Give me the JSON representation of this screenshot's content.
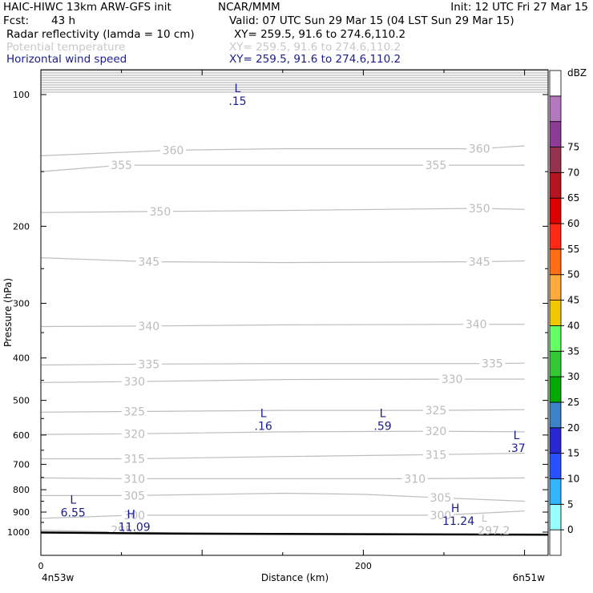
{
  "header": {
    "model_title": "HAIC-HIWC 13km ARW-GFS init",
    "org": "NCAR/MMM",
    "init": "Init: 12 UTC Fri 27 Mar 15",
    "fcst_label": "Fcst:",
    "fcst_value": "43 h",
    "valid": "Valid: 07 UTC Sun 29 Mar 15 (04 LST Sun 29 Mar 15)",
    "fields": [
      {
        "name": "Radar reflectivity (lamda = 10 cm)",
        "xy": "XY= 259.5, 91.6 to 274.6,110.2",
        "color": "#000000"
      },
      {
        "name": "Potential temperature",
        "xy": "XY= 259.5, 91.6 to 274.6,110.2",
        "color": "#c8c8c8"
      },
      {
        "name": "Horizontal wind speed",
        "xy": "XY= 259.5, 91.6 to 274.6,110.2",
        "color": "#1c1c8c"
      }
    ]
  },
  "chart_data": {
    "type": "cross-section",
    "xlabel": "Distance (km)",
    "ylabel": "Pressure (hPa)",
    "x_ticks": [
      "0",
      "200"
    ],
    "x_end_labels": {
      "left": "4n53w",
      "right": "6n51w"
    },
    "xlim": [
      0,
      300
    ],
    "y_ticks": [
      100,
      200,
      300,
      400,
      500,
      600,
      700,
      800,
      900,
      1000
    ],
    "ylim_hpa": [
      1050,
      50
    ],
    "y_scale": "log",
    "theta_contours": [
      {
        "value": 295,
        "labels": [
          {
            "x": 50,
            "p": 990
          }
        ]
      },
      {
        "value": 300,
        "labels": [
          {
            "x": 58,
            "p": 915
          },
          {
            "x": 248,
            "p": 915
          }
        ]
      },
      {
        "value": 305,
        "labels": [
          {
            "x": 58,
            "p": 825
          },
          {
            "x": 248,
            "p": 835
          }
        ]
      },
      {
        "value": 310,
        "labels": [
          {
            "x": 58,
            "p": 755
          },
          {
            "x": 232,
            "p": 755
          }
        ]
      },
      {
        "value": 315,
        "labels": [
          {
            "x": 58,
            "p": 680
          },
          {
            "x": 245,
            "p": 665
          }
        ]
      },
      {
        "value": 320,
        "labels": [
          {
            "x": 58,
            "p": 596
          },
          {
            "x": 245,
            "p": 588
          }
        ]
      },
      {
        "value": 325,
        "labels": [
          {
            "x": 58,
            "p": 530
          },
          {
            "x": 245,
            "p": 527
          }
        ]
      },
      {
        "value": 330,
        "labels": [
          {
            "x": 58,
            "p": 453
          },
          {
            "x": 255,
            "p": 447
          }
        ]
      },
      {
        "value": 335,
        "labels": [
          {
            "x": 67,
            "p": 413
          },
          {
            "x": 280,
            "p": 412
          }
        ]
      },
      {
        "value": 340,
        "labels": [
          {
            "x": 67,
            "p": 338
          },
          {
            "x": 270,
            "p": 335
          }
        ]
      },
      {
        "value": 345,
        "labels": [
          {
            "x": 67,
            "p": 241
          },
          {
            "x": 272,
            "p": 241
          }
        ]
      },
      {
        "value": 350,
        "labels": [
          {
            "x": 74,
            "p": 185
          },
          {
            "x": 272,
            "p": 182
          }
        ]
      },
      {
        "value": 355,
        "labels": [
          {
            "x": 50,
            "p": 145
          },
          {
            "x": 245,
            "p": 145
          }
        ]
      },
      {
        "value": 360,
        "labels": [
          {
            "x": 82,
            "p": 134
          },
          {
            "x": 272,
            "p": 133
          }
        ]
      }
    ],
    "wind_extrema": [
      {
        "type": "L",
        "value": ".15",
        "x": 122,
        "p": 103
      },
      {
        "type": "L",
        "value": ".16",
        "x": 138,
        "p": 570
      },
      {
        "type": "L",
        "value": ".59",
        "x": 212,
        "p": 570
      },
      {
        "type": "L",
        "value": ".37",
        "x": 295,
        "p": 640
      },
      {
        "type": "L",
        "value": "6.55",
        "x": 20,
        "p": 898
      },
      {
        "type": "H",
        "value": "11.09",
        "x": 56,
        "p": 968
      },
      {
        "type": "H",
        "value": "11.24",
        "x": 257,
        "p": 938
      }
    ],
    "theta_extrema": [
      {
        "type": "L",
        "value": "297.2",
        "x": 275,
        "p": 975
      }
    ],
    "colorbar": {
      "unit": "dBZ",
      "levels": [
        0,
        5,
        10,
        15,
        20,
        25,
        30,
        35,
        40,
        45,
        50,
        55,
        60,
        65,
        70,
        75
      ],
      "colors": [
        "#ffffff",
        "#96ffff",
        "#32b4ff",
        "#2850ff",
        "#2828d2",
        "#3c82c8",
        "#00aa00",
        "#32c832",
        "#64ff64",
        "#f0c800",
        "#ffaa3c",
        "#ff6e14",
        "#ff2814",
        "#dc0000",
        "#b4141e",
        "#963250",
        "#8c3c96",
        "#b478be",
        "#ffffff"
      ]
    }
  }
}
